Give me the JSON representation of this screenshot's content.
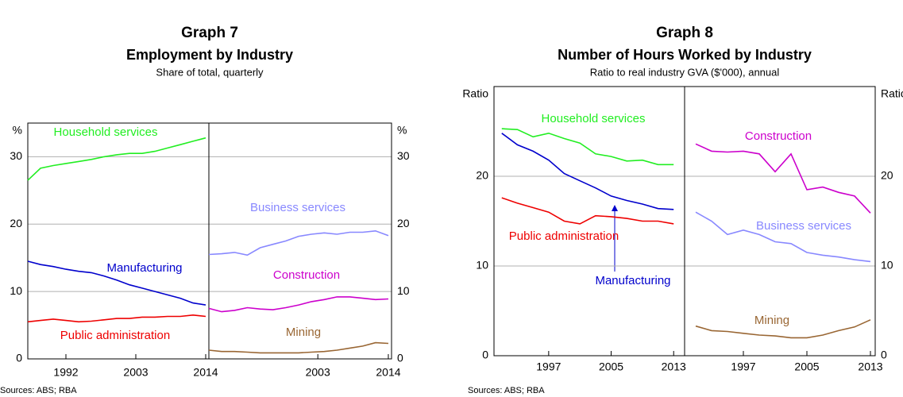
{
  "chart_data": [
    {
      "type": "line",
      "title": "Graph 7",
      "subtitle": "Employment by Industry",
      "note": "Share of total, quarterly",
      "y_label": "%",
      "source": "Sources: ABS; RBA",
      "ylim": [
        0,
        35
      ],
      "yticks": [
        0,
        10,
        20,
        30
      ],
      "grid": true,
      "panels": [
        {
          "x": [
            1986,
            1988,
            1990,
            1992,
            1994,
            1996,
            1998,
            2000,
            2002,
            2004,
            2006,
            2008,
            2010,
            2012,
            2014
          ],
          "xlim": [
            1986,
            2014.5
          ],
          "xticks": [
            1992,
            2003,
            2014
          ],
          "series": [
            {
              "name": "Household services",
              "color": "#22ee22",
              "values": [
                26.5,
                28.3,
                28.7,
                29,
                29.3,
                29.6,
                30,
                30.3,
                30.5,
                30.5,
                30.8,
                31.3,
                31.8,
                32.3,
                32.8
              ]
            },
            {
              "name": "Manufacturing",
              "color": "#0000cc",
              "values": [
                14.5,
                14,
                13.7,
                13.3,
                13,
                12.8,
                12.3,
                11.7,
                11,
                10.5,
                10,
                9.5,
                9,
                8.3,
                8
              ]
            },
            {
              "name": "Public administration",
              "color": "#ee0000",
              "values": [
                5.5,
                5.7,
                5.9,
                5.7,
                5.5,
                5.6,
                5.8,
                6,
                6,
                6.2,
                6.2,
                6.3,
                6.3,
                6.5,
                6.3
              ]
            }
          ]
        },
        {
          "x": [
            1986,
            1988,
            1990,
            1992,
            1994,
            1996,
            1998,
            2000,
            2002,
            2004,
            2006,
            2008,
            2010,
            2012,
            2014
          ],
          "xlim": [
            1986,
            2014.5
          ],
          "xticks": [
            2003,
            2014
          ],
          "series": [
            {
              "name": "Business services",
              "color": "#8888ff",
              "values": [
                15.5,
                15.6,
                15.8,
                15.4,
                16.5,
                17,
                17.5,
                18.2,
                18.5,
                18.7,
                18.5,
                18.8,
                18.8,
                19,
                18.3
              ]
            },
            {
              "name": "Construction",
              "color": "#cc00cc",
              "values": [
                7.5,
                7,
                7.2,
                7.6,
                7.4,
                7.3,
                7.6,
                8,
                8.5,
                8.8,
                9.2,
                9.2,
                9,
                8.8,
                8.9
              ]
            },
            {
              "name": "Mining",
              "color": "#996633",
              "values": [
                1.3,
                1.1,
                1.1,
                1,
                0.9,
                0.9,
                0.9,
                0.9,
                1,
                1.1,
                1.3,
                1.6,
                1.9,
                2.4,
                2.3
              ]
            }
          ]
        }
      ]
    },
    {
      "type": "line",
      "title": "Graph 8",
      "subtitle": "Number of Hours Worked by Industry",
      "note": "Ratio to real industry GVA ($'000), annual",
      "y_label": "Ratio",
      "source": "Sources: ABS; RBA",
      "ylim": [
        0,
        30
      ],
      "yticks": [
        0,
        10,
        20
      ],
      "grid": true,
      "panels": [
        {
          "x": [
            1991,
            1993,
            1995,
            1997,
            1999,
            2001,
            2003,
            2005,
            2007,
            2009,
            2011,
            2013
          ],
          "xlim": [
            1990,
            2014.4
          ],
          "xticks": [
            1997,
            2005,
            2013
          ],
          "series": [
            {
              "name": "Household services",
              "color": "#22ee22",
              "values": [
                25.3,
                25.2,
                24.4,
                24.8,
                24.2,
                23.7,
                22.5,
                22.2,
                21.7,
                21.8,
                21.3,
                21.3
              ]
            },
            {
              "name": "Manufacturing",
              "color": "#0000cc",
              "values": [
                24.8,
                23.5,
                22.8,
                21.8,
                20.3,
                19.5,
                18.7,
                17.8,
                17.3,
                16.9,
                16.4,
                16.3
              ]
            },
            {
              "name": "Public administration",
              "color": "#ee0000",
              "values": [
                17.6,
                17,
                16.5,
                16,
                15,
                14.7,
                15.6,
                15.5,
                15.3,
                15,
                15,
                14.7
              ]
            }
          ]
        },
        {
          "x": [
            1991,
            1993,
            1995,
            1997,
            1999,
            2001,
            2003,
            2005,
            2007,
            2009,
            2011,
            2013
          ],
          "xlim": [
            1989.6,
            2013.6
          ],
          "xticks": [
            1997,
            2005,
            2013
          ],
          "series": [
            {
              "name": "Construction",
              "color": "#cc00cc",
              "values": [
                23.6,
                22.8,
                22.7,
                22.8,
                22.5,
                20.5,
                22.5,
                18.5,
                18.8,
                18.2,
                17.8,
                15.9
              ]
            },
            {
              "name": "Business services",
              "color": "#8888ff",
              "values": [
                16,
                15,
                13.5,
                14,
                13.5,
                12.7,
                12.5,
                11.5,
                11.2,
                11,
                10.7,
                10.5
              ]
            },
            {
              "name": "Mining",
              "color": "#996633",
              "values": [
                3.3,
                2.8,
                2.7,
                2.5,
                2.3,
                2.2,
                2,
                2,
                2.3,
                2.8,
                3.2,
                4
              ]
            }
          ]
        }
      ]
    }
  ]
}
